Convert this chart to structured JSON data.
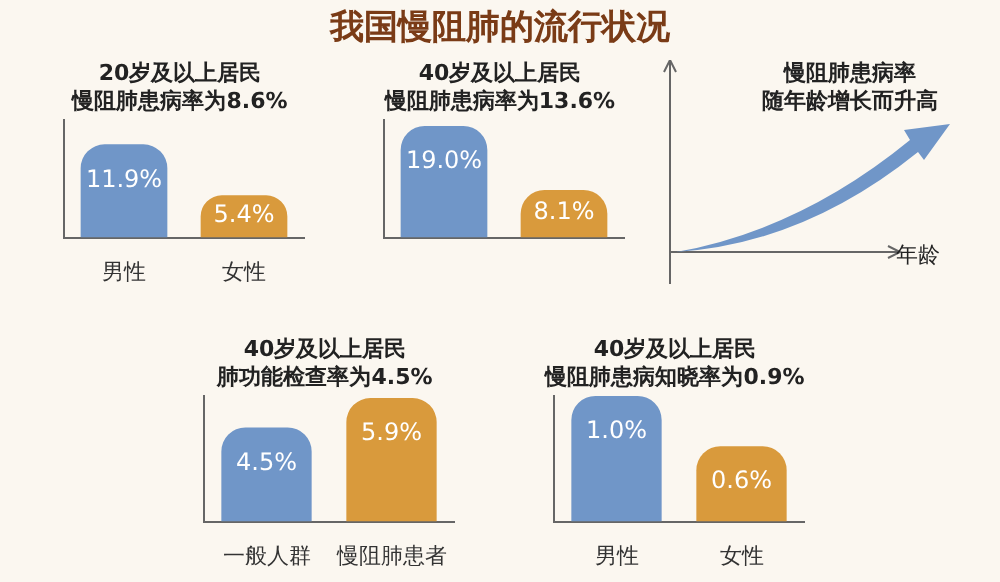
{
  "chart_data": [
    {
      "type": "other",
      "title": "我国慢阻肺的流行状况"
    },
    {
      "type": "bar",
      "title": "20岁及以上居民",
      "subtitle": "慢阻肺患病率为8.6%",
      "categories": [
        "男性",
        "女性"
      ],
      "values": [
        11.9,
        5.4
      ],
      "value_labels": [
        "11.9%",
        "5.4%"
      ],
      "colors": [
        "#7096c8",
        "#d99a3c"
      ]
    },
    {
      "type": "bar",
      "title": "40岁及以上居民",
      "subtitle": "慢阻肺患病率为13.6%",
      "categories": [
        null,
        null
      ],
      "values": [
        19.0,
        8.1
      ],
      "value_labels": [
        "19.0%",
        "8.1%"
      ],
      "colors": [
        "#7096c8",
        "#d99a3c"
      ]
    },
    {
      "type": "other",
      "title": "慢阻肺患病率",
      "subtitle": "随年龄增长而升高",
      "xlabel": "年龄"
    },
    {
      "type": "bar",
      "title": "40岁及以上居民",
      "subtitle": "肺功能检查率为4.5%",
      "categories": [
        "一般人群",
        "慢阻肺患者"
      ],
      "values": [
        4.5,
        5.9
      ],
      "value_labels": [
        "4.5%",
        "5.9%"
      ],
      "colors": [
        "#7096c8",
        "#d99a3c"
      ]
    },
    {
      "type": "bar",
      "title": "40岁及以上居民",
      "subtitle": "慢阻肺患病知晓率为0.9%",
      "categories": [
        "男性",
        "女性"
      ],
      "values": [
        1.0,
        0.6
      ],
      "value_labels": [
        "1.0%",
        "0.6%"
      ],
      "colors": [
        "#7096c8",
        "#d99a3c"
      ]
    }
  ]
}
